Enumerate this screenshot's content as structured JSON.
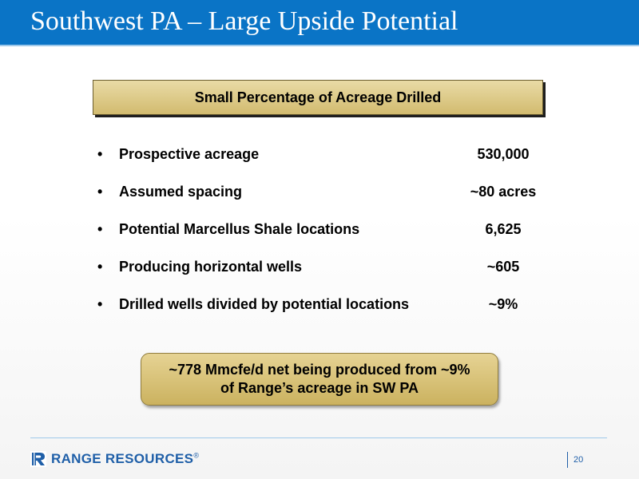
{
  "slide": {
    "title": "Southwest PA – Large Upside Potential",
    "heading": "Small Percentage of Acreage Drilled",
    "bullet_char": "•",
    "rows": [
      {
        "label": "Prospective acreage",
        "value": "530,000"
      },
      {
        "label": "Assumed spacing",
        "value": "~80 acres"
      },
      {
        "label": "Potential Marcellus Shale locations",
        "value": "6,625"
      },
      {
        "label": "Producing horizontal wells",
        "value": "~605"
      },
      {
        "label": "Drilled wells divided by potential locations",
        "value": "~9%"
      }
    ],
    "callout": {
      "line1": "~778 Mmcfe/d net being produced from ~9%",
      "line2": "of Range’s acreage in SW PA"
    }
  },
  "footer": {
    "logo_text": "RANGE RESOURCES",
    "logo_mark": "®",
    "page_number": "20"
  },
  "colors": {
    "title_bar": "#0a74c6",
    "heading_fill": "#d9c67f",
    "logo_blue": "#1f5fa8"
  }
}
